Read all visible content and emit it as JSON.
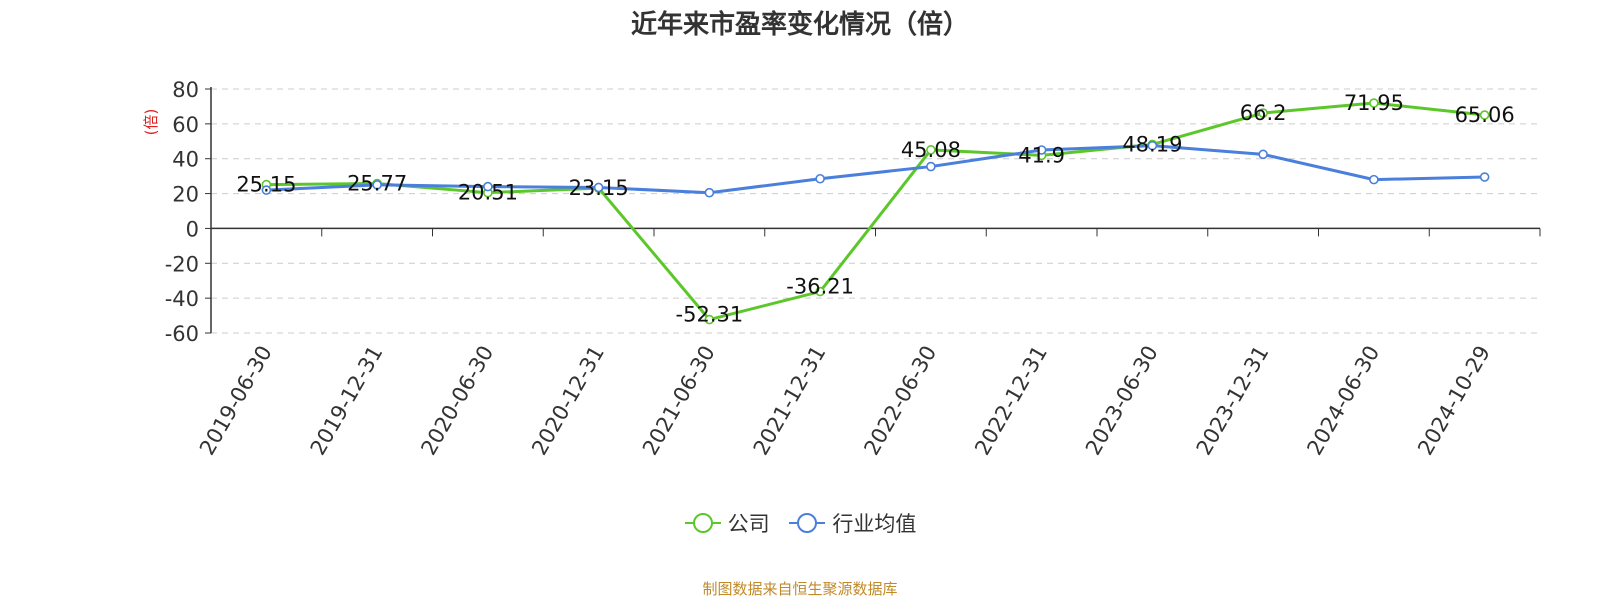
{
  "chart_data": {
    "type": "line",
    "title": "近年来市盈率变化情况（倍）",
    "ylabel": "(倍)",
    "xlabel": "",
    "categories": [
      "2019-06-30",
      "2019-12-31",
      "2020-06-30",
      "2020-12-31",
      "2021-06-30",
      "2021-12-31",
      "2022-06-30",
      "2022-12-31",
      "2023-06-30",
      "2023-12-31",
      "2024-06-30",
      "2024-10-29"
    ],
    "ylim": [
      -60,
      80
    ],
    "yticks": [
      80,
      60,
      40,
      20,
      0,
      -20,
      -40,
      -60
    ],
    "grid": true,
    "legend_position": "bottom",
    "series": [
      {
        "name": "公司",
        "color": "#5cc72a",
        "values": [
          25.15,
          25.77,
          20.51,
          23.15,
          -52.31,
          -36.21,
          45.08,
          41.9,
          48.19,
          66.2,
          71.95,
          65.06
        ],
        "labels": [
          "25.15",
          "25.77",
          "20.51",
          "23.15",
          "-52.31",
          "-36.21",
          "45.08",
          "41.9",
          "48.19",
          "66.2",
          "71.95",
          "65.06"
        ]
      },
      {
        "name": "行业均值",
        "color": "#4a7fdb",
        "values": [
          22.0,
          25.0,
          24.0,
          23.5,
          20.5,
          28.5,
          35.5,
          45.0,
          47.5,
          42.5,
          28.0,
          29.5
        ]
      }
    ]
  },
  "source_note": "制图数据来自恒生聚源数据库"
}
